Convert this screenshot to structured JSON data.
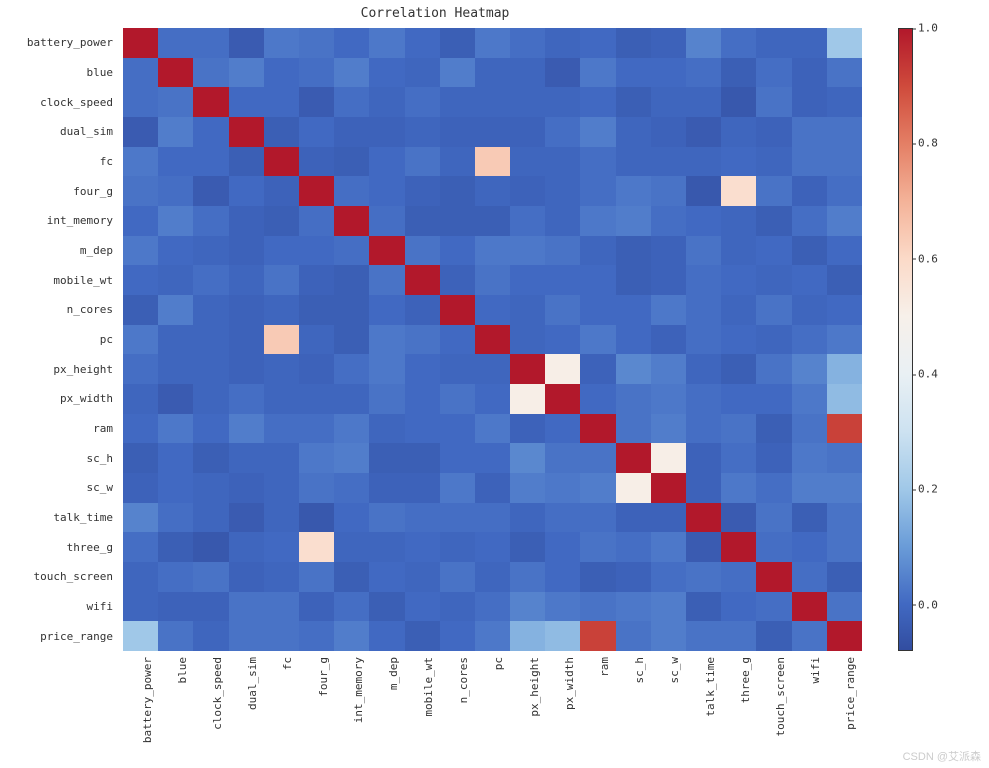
{
  "title": "Correlation Heatmap",
  "labels": [
    "battery_power",
    "blue",
    "clock_speed",
    "dual_sim",
    "fc",
    "four_g",
    "int_memory",
    "m_dep",
    "mobile_wt",
    "n_cores",
    "pc",
    "px_height",
    "px_width",
    "ram",
    "sc_h",
    "sc_w",
    "talk_time",
    "three_g",
    "touch_screen",
    "wifi",
    "price_range"
  ],
  "matrix": [
    [
      1.0,
      0.01,
      0.01,
      -0.04,
      0.03,
      0.02,
      -0.0,
      0.03,
      0.0,
      -0.03,
      0.03,
      0.01,
      -0.01,
      -0.0,
      -0.03,
      -0.02,
      0.05,
      0.01,
      -0.01,
      -0.01,
      0.2
    ],
    [
      0.01,
      1.0,
      0.02,
      0.04,
      0.0,
      0.01,
      0.04,
      0.0,
      -0.01,
      0.04,
      -0.01,
      -0.01,
      -0.04,
      0.03,
      -0.0,
      0.0,
      0.01,
      -0.03,
      0.01,
      -0.02,
      0.02
    ],
    [
      0.01,
      0.02,
      1.0,
      -0.0,
      -0.0,
      -0.04,
      0.01,
      -0.01,
      0.01,
      -0.01,
      -0.01,
      -0.01,
      -0.01,
      0.0,
      -0.03,
      -0.01,
      -0.01,
      -0.05,
      0.02,
      -0.02,
      -0.01
    ],
    [
      -0.04,
      0.04,
      -0.0,
      1.0,
      -0.03,
      0.0,
      -0.02,
      -0.02,
      -0.01,
      -0.02,
      -0.02,
      -0.02,
      0.01,
      0.04,
      -0.01,
      -0.02,
      -0.04,
      -0.01,
      -0.02,
      0.02,
      0.02
    ],
    [
      0.03,
      0.0,
      -0.0,
      -0.03,
      1.0,
      -0.02,
      -0.03,
      -0.0,
      0.02,
      -0.01,
      0.64,
      -0.01,
      -0.01,
      0.01,
      -0.01,
      -0.01,
      -0.01,
      0.0,
      -0.01,
      0.02,
      0.02
    ],
    [
      0.02,
      0.01,
      -0.04,
      0.0,
      -0.02,
      1.0,
      0.01,
      -0.0,
      -0.02,
      -0.03,
      -0.01,
      -0.02,
      -0.01,
      0.01,
      0.03,
      0.02,
      -0.05,
      0.58,
      0.02,
      -0.02,
      0.01
    ],
    [
      -0.0,
      0.04,
      0.01,
      -0.02,
      -0.03,
      0.01,
      1.0,
      0.01,
      -0.03,
      -0.03,
      -0.03,
      0.01,
      -0.01,
      0.03,
      0.04,
      0.01,
      -0.0,
      -0.01,
      -0.03,
      0.01,
      0.04
    ],
    [
      0.03,
      0.0,
      -0.01,
      -0.02,
      -0.0,
      -0.0,
      0.01,
      1.0,
      0.02,
      -0.0,
      0.03,
      0.03,
      0.02,
      -0.01,
      -0.03,
      -0.02,
      0.02,
      -0.01,
      -0.0,
      -0.03,
      0.0
    ],
    [
      0.0,
      -0.01,
      0.01,
      -0.01,
      0.02,
      -0.02,
      -0.03,
      0.02,
      1.0,
      -0.02,
      0.02,
      0.0,
      0.0,
      -0.0,
      -0.03,
      -0.02,
      0.01,
      0.0,
      -0.01,
      -0.0,
      -0.03
    ],
    [
      -0.03,
      0.04,
      -0.01,
      -0.02,
      -0.01,
      -0.03,
      -0.03,
      -0.0,
      -0.02,
      1.0,
      -0.0,
      -0.01,
      0.02,
      0.0,
      -0.0,
      0.03,
      0.01,
      -0.01,
      0.02,
      -0.01,
      0.0
    ],
    [
      0.03,
      -0.01,
      -0.01,
      -0.02,
      0.64,
      -0.01,
      -0.03,
      0.03,
      0.02,
      -0.0,
      1.0,
      -0.01,
      0.0,
      0.03,
      0.0,
      -0.02,
      0.01,
      -0.0,
      -0.01,
      0.01,
      0.03
    ],
    [
      0.01,
      -0.01,
      -0.01,
      -0.02,
      -0.01,
      -0.02,
      0.01,
      0.03,
      0.0,
      -0.01,
      -0.01,
      1.0,
      0.51,
      -0.02,
      0.06,
      0.04,
      -0.01,
      -0.03,
      0.02,
      0.05,
      0.15
    ],
    [
      -0.01,
      -0.04,
      -0.01,
      0.01,
      -0.01,
      -0.01,
      -0.01,
      0.02,
      0.0,
      0.02,
      0.0,
      0.51,
      1.0,
      0.0,
      0.02,
      0.03,
      0.01,
      0.0,
      -0.0,
      0.03,
      0.17
    ],
    [
      -0.0,
      0.03,
      0.0,
      0.04,
      0.01,
      0.01,
      0.03,
      -0.01,
      -0.0,
      0.0,
      0.03,
      -0.02,
      0.0,
      1.0,
      0.02,
      0.04,
      0.01,
      0.02,
      -0.03,
      0.02,
      0.92
    ],
    [
      -0.03,
      -0.0,
      -0.03,
      -0.01,
      -0.01,
      0.03,
      0.04,
      -0.03,
      -0.03,
      -0.0,
      0.0,
      0.06,
      0.02,
      0.02,
      1.0,
      0.51,
      -0.02,
      0.01,
      -0.02,
      0.03,
      0.02
    ],
    [
      -0.02,
      0.0,
      -0.01,
      -0.02,
      -0.01,
      0.02,
      0.01,
      -0.02,
      -0.02,
      0.03,
      -0.02,
      0.04,
      0.03,
      0.04,
      0.51,
      1.0,
      -0.02,
      0.03,
      0.01,
      0.04,
      0.04
    ],
    [
      0.05,
      0.01,
      -0.01,
      -0.04,
      -0.01,
      -0.05,
      -0.0,
      0.02,
      0.01,
      0.01,
      0.01,
      -0.01,
      0.01,
      0.01,
      -0.02,
      -0.02,
      1.0,
      -0.04,
      0.02,
      -0.03,
      0.02
    ],
    [
      0.01,
      -0.03,
      -0.05,
      -0.01,
      0.0,
      0.58,
      -0.01,
      -0.01,
      0.0,
      -0.01,
      -0.0,
      -0.03,
      0.0,
      0.02,
      0.01,
      0.03,
      -0.04,
      1.0,
      0.01,
      0.0,
      0.02
    ],
    [
      -0.01,
      0.01,
      0.02,
      -0.02,
      -0.01,
      0.02,
      -0.03,
      -0.0,
      -0.01,
      0.02,
      -0.01,
      0.02,
      -0.0,
      -0.03,
      -0.02,
      0.01,
      0.02,
      0.01,
      1.0,
      0.01,
      -0.03
    ],
    [
      -0.01,
      -0.02,
      -0.02,
      0.02,
      0.02,
      -0.02,
      0.01,
      -0.03,
      -0.0,
      -0.01,
      0.01,
      0.05,
      0.03,
      0.02,
      0.03,
      0.04,
      -0.03,
      0.0,
      0.01,
      1.0,
      0.02
    ],
    [
      0.2,
      0.02,
      -0.01,
      0.02,
      0.02,
      0.01,
      0.04,
      0.0,
      -0.03,
      0.0,
      0.03,
      0.15,
      0.17,
      0.92,
      0.02,
      0.04,
      0.02,
      0.02,
      -0.03,
      0.02,
      1.0
    ]
  ],
  "colormap": {
    "stops": [
      {
        "v": -0.08,
        "c": "#324da0"
      },
      {
        "v": 0.0,
        "c": "#4169c2"
      },
      {
        "v": 0.1,
        "c": "#6a9cd8"
      },
      {
        "v": 0.2,
        "c": "#a0c8e8"
      },
      {
        "v": 0.3,
        "c": "#cde2f1"
      },
      {
        "v": 0.4,
        "c": "#e9f0f4"
      },
      {
        "v": 0.5,
        "c": "#f7f0ea"
      },
      {
        "v": 0.6,
        "c": "#fbdac8"
      },
      {
        "v": 0.7,
        "c": "#f4b399"
      },
      {
        "v": 0.8,
        "c": "#e47f65"
      },
      {
        "v": 0.9,
        "c": "#cf4b3c"
      },
      {
        "v": 1.0,
        "c": "#b2182b"
      }
    ],
    "vmin": -0.08,
    "vmax": 1.0
  },
  "colorbar_ticks": [
    {
      "v": 0.0,
      "label": "0.0"
    },
    {
      "v": 0.2,
      "label": "0.2"
    },
    {
      "v": 0.4,
      "label": "0.4"
    },
    {
      "v": 0.6,
      "label": "0.6"
    },
    {
      "v": 0.8,
      "label": "0.8"
    },
    {
      "v": 1.0,
      "label": "1.0"
    }
  ],
  "title_fontsize": 13,
  "label_fontsize": 11,
  "background_color": "#ffffff",
  "watermark": "CSDN @艾派森"
}
